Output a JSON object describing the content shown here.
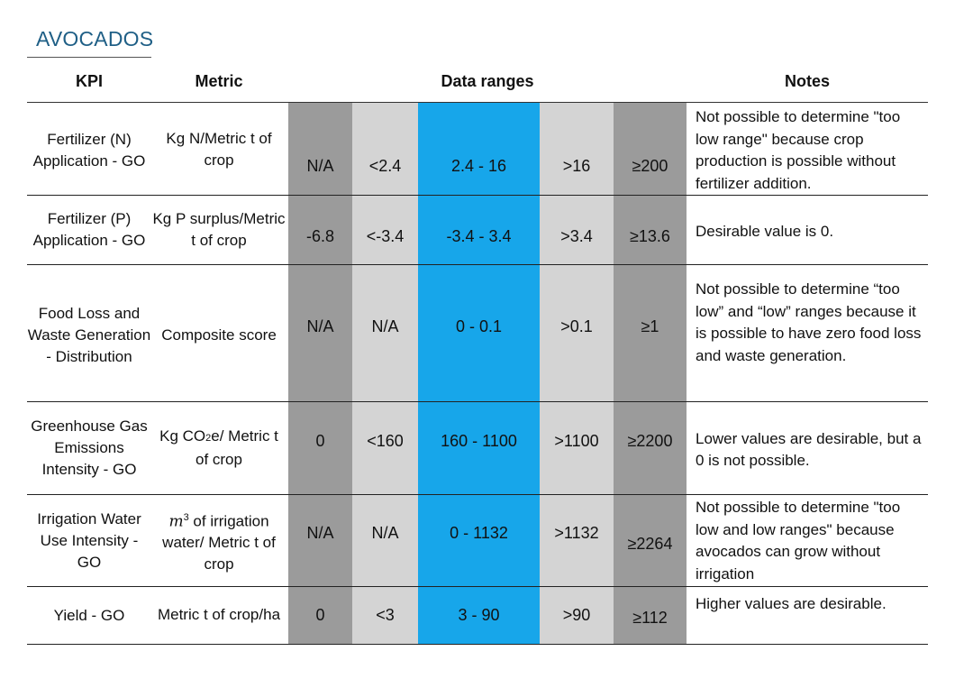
{
  "title": "AVOCADOS",
  "headers": {
    "kpi": "KPI",
    "metric": "Metric",
    "ranges": "Data ranges",
    "notes": "Notes"
  },
  "colors": {
    "band_dark": "#9b9b9b",
    "band_light": "#d4d4d4",
    "band_target": "#17a6ea",
    "title": "#1f5f86"
  },
  "rows": [
    {
      "kpi": "Fertilizer (N) Application - GO",
      "metric": "Kg N/Metric t of crop",
      "ranges": [
        "N/A",
        "<2.4",
        "2.4 - 16",
        ">16",
        "≥200"
      ],
      "note": "Not possible to determine \"too low range\" because crop production is possible without fertilizer addition."
    },
    {
      "kpi": "Fertilizer (P) Application - GO",
      "metric": "Kg P surplus/Metric t of crop",
      "ranges": [
        "-6.8",
        "<-3.4",
        "-3.4 - 3.4",
        ">3.4",
        "≥13.6"
      ],
      "note": "Desirable value is 0."
    },
    {
      "kpi": "Food Loss and Waste Generation - Distribution",
      "metric": "Composite score",
      "ranges": [
        "N/A",
        "N/A",
        "0 - 0.1",
        ">0.1",
        "≥1"
      ],
      "note": "Not possible to determine “too low” and “low” ranges because it is possible to have zero food loss and waste generation."
    },
    {
      "kpi": "Greenhouse Gas Emissions Intensity - GO",
      "metric_pre": "Kg CO",
      "metric_sub": "2",
      "metric_post": "e/ Metric t of crop",
      "ranges": [
        "0",
        "<160",
        "160 - 1100",
        ">1100",
        "≥2200"
      ],
      "note": "Lower values are desirable, but a 0 is not possible."
    },
    {
      "kpi": "Irrigation Water Use Intensity - GO",
      "metric_pre": "m",
      "metric_sup": "3",
      "metric_post": " of irrigation water/ Metric t of crop",
      "ranges": [
        "N/A",
        "N/A",
        "0 - 1132",
        ">1132",
        "≥2264"
      ],
      "note": "Not possible to determine \"too low and low ranges\" because avocados can grow without irrigation"
    },
    {
      "kpi": "Yield - GO",
      "metric": "Metric t of crop/ha",
      "ranges": [
        "0",
        "<3",
        "3 - 90",
        ">90",
        "≥112"
      ],
      "note": "Higher values are desirable."
    }
  ]
}
